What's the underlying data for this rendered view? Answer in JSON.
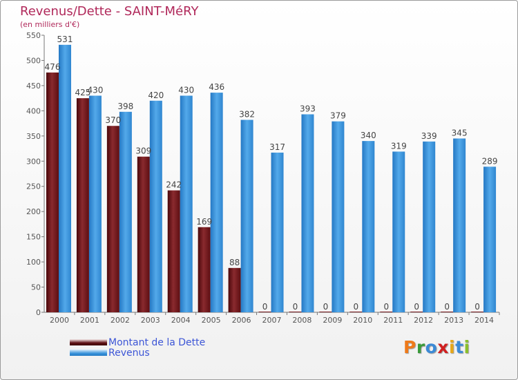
{
  "title": "Revenus/Dette - SAINT-MéRY",
  "subtitle": "(en milliers d'€)",
  "chart_data": {
    "type": "bar",
    "categories": [
      "2000",
      "2001",
      "2002",
      "2003",
      "2004",
      "2005",
      "2006",
      "2007",
      "2008",
      "2009",
      "2010",
      "2011",
      "2012",
      "2013",
      "2014"
    ],
    "series": [
      {
        "name": "Montant de la Dette",
        "values": [
          476,
          425,
          370,
          309,
          242,
          169,
          88,
          0,
          0,
          0,
          0,
          0,
          0,
          0,
          0
        ],
        "color": "#7a1a1e"
      },
      {
        "name": "Revenus",
        "values": [
          531,
          430,
          398,
          420,
          430,
          436,
          382,
          317,
          393,
          379,
          340,
          319,
          339,
          345,
          289
        ],
        "color": "#3d96dc"
      }
    ],
    "ylim": [
      0,
      550
    ],
    "yticks": [
      0,
      50,
      100,
      150,
      200,
      250,
      300,
      350,
      400,
      450,
      500,
      550
    ],
    "grid": false,
    "legend": "bottom-left"
  },
  "logo": {
    "letters": [
      "P",
      "r",
      "o",
      "x",
      "i",
      "t",
      "i"
    ],
    "colors": [
      "#ee7a1a",
      "#3a9a3a",
      "#3b8ad6",
      "#d02020",
      "#e6a718",
      "#3b8ad6",
      "#8bbf2a"
    ]
  }
}
